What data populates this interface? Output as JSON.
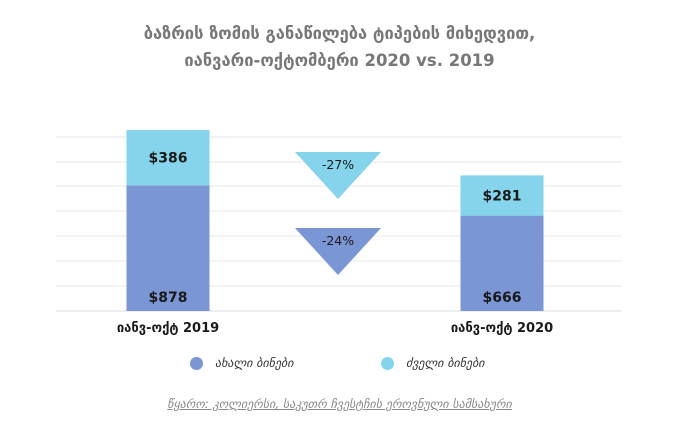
{
  "title": {
    "line1": "ბაზრის ზომის განაწილება ტიპების მიხედვით,",
    "line2": "იანვარი-ოქტომბერი 2020 vs. 2019"
  },
  "colors": {
    "new": "#7b96d4",
    "old": "#85d4ec",
    "text": "#1a1a1a",
    "grid": "#e8e8e8"
  },
  "chart_data": {
    "type": "bar",
    "stacked": true,
    "currency": "$",
    "categories": [
      "იანვ-ოქტ 2019",
      "იანვ-ოქტ 2020"
    ],
    "series": [
      {
        "name": "ახალი ბინები",
        "values": [
          878,
          666
        ]
      },
      {
        "name": "ძველი ბინები",
        "values": [
          386,
          281
        ]
      }
    ],
    "value_labels": [
      [
        "$878",
        "$666"
      ],
      [
        "$386",
        "$281"
      ]
    ],
    "change_labels": [
      "-27%",
      "-24%"
    ],
    "ylim": [
      0,
      1300
    ],
    "grid": true,
    "legend_position": "bottom"
  },
  "legend": [
    "ახალი ბინები",
    "ძველი ბინები"
  ],
  "source": "წყარო: კოლიერსი, საკუთრ ჩვესტჩის ეროვნული სამსახური"
}
